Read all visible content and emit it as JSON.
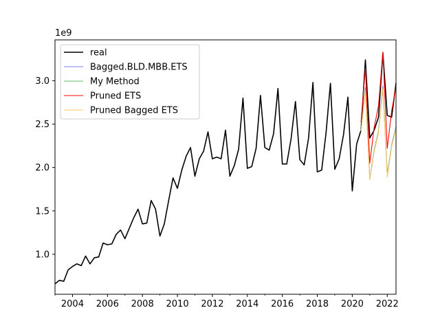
{
  "chart_data": {
    "type": "line",
    "offset_text": "1e9",
    "ylim": [
      0.54,
      3.47
    ],
    "xlim": [
      2003.0,
      2022.5
    ],
    "x_ticks": [
      2004,
      2006,
      2008,
      2010,
      2012,
      2014,
      2016,
      2018,
      2020,
      2022
    ],
    "x_tick_labels": [
      "2004",
      "2006",
      "2008",
      "2010",
      "2012",
      "2014",
      "2016",
      "2018",
      "2020",
      "2022"
    ],
    "y_ticks": [
      1.0,
      1.5,
      2.0,
      2.5,
      3.0
    ],
    "y_tick_labels": [
      "1.0",
      "1.5",
      "2.0",
      "2.5",
      "3.0"
    ],
    "legend_position": "top-left",
    "grid": false,
    "series": [
      {
        "name": "real",
        "color": "#000000",
        "x": [
          2003.0,
          2003.25,
          2003.5,
          2003.75,
          2004.0,
          2004.25,
          2004.5,
          2004.75,
          2005.0,
          2005.25,
          2005.5,
          2005.75,
          2006.0,
          2006.25,
          2006.5,
          2006.75,
          2007.0,
          2007.25,
          2007.5,
          2007.75,
          2008.0,
          2008.25,
          2008.5,
          2008.75,
          2009.0,
          2009.25,
          2009.5,
          2009.75,
          2010.0,
          2010.25,
          2010.5,
          2010.75,
          2011.0,
          2011.25,
          2011.5,
          2011.75,
          2012.0,
          2012.25,
          2012.5,
          2012.75,
          2013.0,
          2013.25,
          2013.5,
          2013.75,
          2014.0,
          2014.25,
          2014.5,
          2014.75,
          2015.0,
          2015.25,
          2015.5,
          2015.75,
          2016.0,
          2016.25,
          2016.5,
          2016.75,
          2017.0,
          2017.25,
          2017.5,
          2017.75,
          2018.0,
          2018.25,
          2018.5,
          2018.75,
          2019.0,
          2019.25,
          2019.5,
          2019.75,
          2020.0,
          2020.25,
          2020.5,
          2020.75,
          2021.0,
          2021.25,
          2021.5,
          2021.75,
          2022.0,
          2022.25,
          2022.5
        ],
        "y": [
          0.66,
          0.7,
          0.69,
          0.82,
          0.86,
          0.89,
          0.87,
          0.98,
          0.89,
          0.96,
          0.97,
          1.13,
          1.11,
          1.12,
          1.23,
          1.28,
          1.18,
          1.3,
          1.42,
          1.52,
          1.35,
          1.36,
          1.62,
          1.52,
          1.21,
          1.35,
          1.62,
          1.88,
          1.76,
          1.97,
          2.13,
          2.23,
          1.9,
          2.1,
          2.19,
          2.41,
          2.1,
          2.12,
          2.1,
          2.43,
          1.9,
          2.02,
          2.21,
          2.8,
          1.99,
          2.01,
          2.22,
          2.83,
          2.23,
          2.2,
          2.39,
          2.91,
          2.04,
          2.04,
          2.33,
          2.76,
          2.09,
          2.03,
          2.34,
          2.98,
          1.95,
          1.97,
          2.4,
          2.97,
          1.98,
          2.1,
          2.38,
          2.81,
          1.73,
          2.27,
          2.43,
          3.24,
          2.34,
          2.43,
          2.58,
          3.32,
          2.6,
          2.58,
          2.97
        ]
      },
      {
        "name": "Bagged.BLD.MBB.ETS",
        "color": "#7b7bf0",
        "x": [
          2020.5,
          2020.75,
          2021.0,
          2021.25,
          2021.5,
          2021.75,
          2022.0,
          2022.25,
          2022.5
        ],
        "y": [
          2.42,
          2.92,
          1.87,
          2.2,
          2.42,
          2.94,
          1.92,
          2.26,
          2.47
        ]
      },
      {
        "name": "My Method",
        "color": "#66bb66",
        "x": [
          2020.5,
          2020.75,
          2021.0,
          2021.25,
          2021.5,
          2021.75,
          2022.0,
          2022.25,
          2022.5
        ],
        "y": [
          2.42,
          2.9,
          1.86,
          2.19,
          2.41,
          2.92,
          1.91,
          2.25,
          2.46
        ]
      },
      {
        "name": "Pruned ETS",
        "color": "#ff0000",
        "x": [
          2020.5,
          2020.75,
          2021.0,
          2021.25,
          2021.5,
          2021.75,
          2022.0,
          2022.25,
          2022.5
        ],
        "y": [
          2.52,
          3.14,
          2.05,
          2.46,
          2.71,
          3.33,
          2.22,
          2.65,
          2.93
        ]
      },
      {
        "name": "Pruned Bagged ETS",
        "color": "#ffc966",
        "x": [
          2020.5,
          2020.75,
          2021.0,
          2021.25,
          2021.5,
          2021.75,
          2022.0,
          2022.25,
          2022.5
        ],
        "y": [
          2.42,
          2.88,
          1.86,
          2.18,
          2.4,
          2.9,
          1.89,
          2.24,
          2.45
        ]
      }
    ]
  }
}
